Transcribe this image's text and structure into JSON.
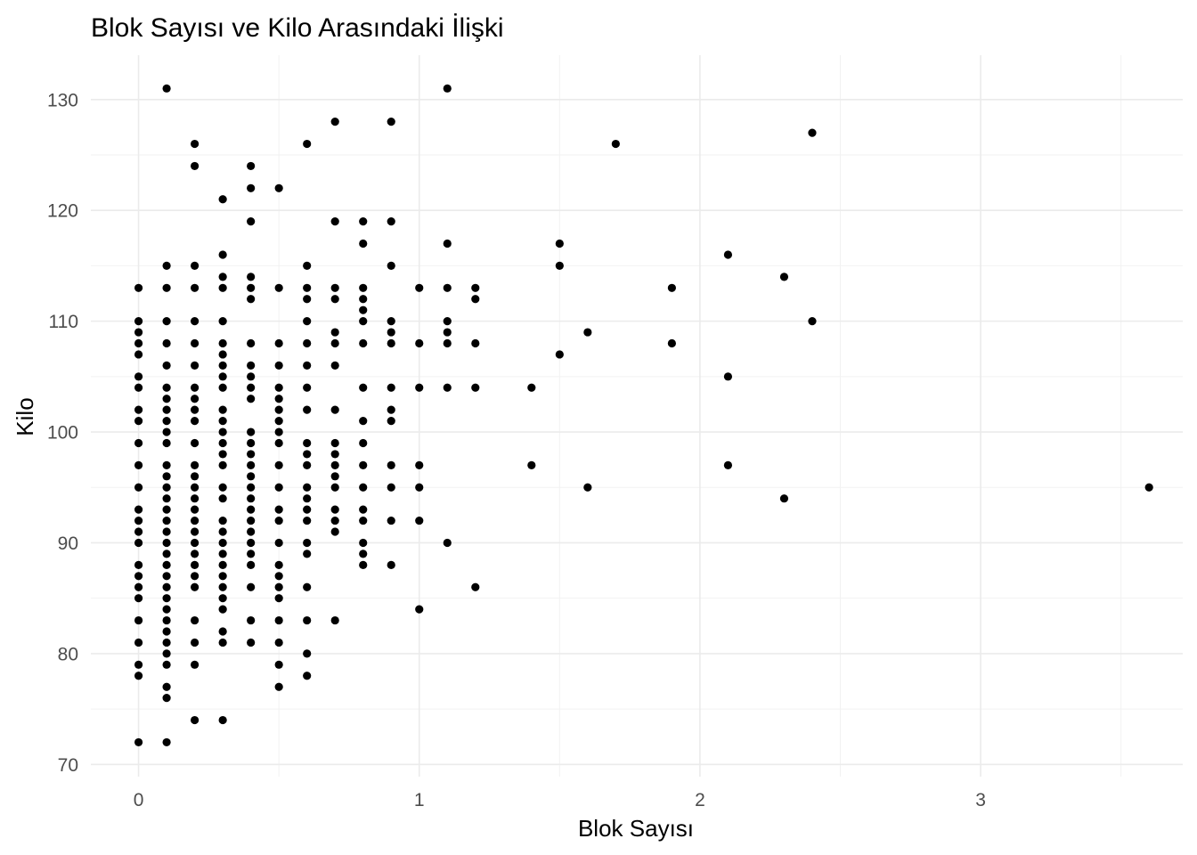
{
  "chart_data": {
    "type": "scatter",
    "title": "Blok Sayısı ve Kilo Arasındaki İlişki",
    "xlabel": "Blok Sayısı",
    "ylabel": "Kilo",
    "xlim": [
      -0.17,
      3.72
    ],
    "ylim": [
      68.9,
      134.0
    ],
    "x_ticks": [
      0,
      1,
      2,
      3
    ],
    "y_ticks": [
      70,
      80,
      90,
      100,
      110,
      120,
      130
    ],
    "grid": true,
    "point_color": "#000000",
    "points": [
      [
        0,
        72
      ],
      [
        0,
        78
      ],
      [
        0,
        79
      ],
      [
        0,
        81
      ],
      [
        0,
        83
      ],
      [
        0,
        85
      ],
      [
        0,
        86
      ],
      [
        0,
        87
      ],
      [
        0,
        88
      ],
      [
        0,
        90
      ],
      [
        0,
        91
      ],
      [
        0,
        92
      ],
      [
        0,
        93
      ],
      [
        0,
        95
      ],
      [
        0,
        97
      ],
      [
        0,
        99
      ],
      [
        0,
        101
      ],
      [
        0,
        102
      ],
      [
        0,
        104
      ],
      [
        0,
        105
      ],
      [
        0,
        107
      ],
      [
        0,
        108
      ],
      [
        0,
        109
      ],
      [
        0,
        110
      ],
      [
        0,
        113
      ],
      [
        0.1,
        72
      ],
      [
        0.1,
        76
      ],
      [
        0.1,
        77
      ],
      [
        0.1,
        79
      ],
      [
        0.1,
        80
      ],
      [
        0.1,
        81
      ],
      [
        0.1,
        82
      ],
      [
        0.1,
        83
      ],
      [
        0.1,
        84
      ],
      [
        0.1,
        85
      ],
      [
        0.1,
        86
      ],
      [
        0.1,
        87
      ],
      [
        0.1,
        88
      ],
      [
        0.1,
        89
      ],
      [
        0.1,
        90
      ],
      [
        0.1,
        91
      ],
      [
        0.1,
        92
      ],
      [
        0.1,
        93
      ],
      [
        0.1,
        94
      ],
      [
        0.1,
        95
      ],
      [
        0.1,
        96
      ],
      [
        0.1,
        97
      ],
      [
        0.1,
        99
      ],
      [
        0.1,
        100
      ],
      [
        0.1,
        101
      ],
      [
        0.1,
        102
      ],
      [
        0.1,
        103
      ],
      [
        0.1,
        104
      ],
      [
        0.1,
        106
      ],
      [
        0.1,
        108
      ],
      [
        0.1,
        110
      ],
      [
        0.1,
        113
      ],
      [
        0.1,
        115
      ],
      [
        0.1,
        131
      ],
      [
        0.2,
        74
      ],
      [
        0.2,
        79
      ],
      [
        0.2,
        81
      ],
      [
        0.2,
        83
      ],
      [
        0.2,
        86
      ],
      [
        0.2,
        87
      ],
      [
        0.2,
        88
      ],
      [
        0.2,
        89
      ],
      [
        0.2,
        90
      ],
      [
        0.2,
        91
      ],
      [
        0.2,
        92
      ],
      [
        0.2,
        93
      ],
      [
        0.2,
        94
      ],
      [
        0.2,
        95
      ],
      [
        0.2,
        96
      ],
      [
        0.2,
        97
      ],
      [
        0.2,
        99
      ],
      [
        0.2,
        101
      ],
      [
        0.2,
        102
      ],
      [
        0.2,
        103
      ],
      [
        0.2,
        104
      ],
      [
        0.2,
        106
      ],
      [
        0.2,
        108
      ],
      [
        0.2,
        110
      ],
      [
        0.2,
        113
      ],
      [
        0.2,
        115
      ],
      [
        0.2,
        124
      ],
      [
        0.2,
        126
      ],
      [
        0.3,
        74
      ],
      [
        0.3,
        81
      ],
      [
        0.3,
        82
      ],
      [
        0.3,
        84
      ],
      [
        0.3,
        85
      ],
      [
        0.3,
        86
      ],
      [
        0.3,
        87
      ],
      [
        0.3,
        88
      ],
      [
        0.3,
        89
      ],
      [
        0.3,
        90
      ],
      [
        0.3,
        91
      ],
      [
        0.3,
        92
      ],
      [
        0.3,
        94
      ],
      [
        0.3,
        95
      ],
      [
        0.3,
        97
      ],
      [
        0.3,
        98
      ],
      [
        0.3,
        99
      ],
      [
        0.3,
        100
      ],
      [
        0.3,
        101
      ],
      [
        0.3,
        102
      ],
      [
        0.3,
        104
      ],
      [
        0.3,
        105
      ],
      [
        0.3,
        106
      ],
      [
        0.3,
        107
      ],
      [
        0.3,
        108
      ],
      [
        0.3,
        110
      ],
      [
        0.3,
        113
      ],
      [
        0.3,
        114
      ],
      [
        0.3,
        116
      ],
      [
        0.3,
        121
      ],
      [
        0.4,
        81
      ],
      [
        0.4,
        83
      ],
      [
        0.4,
        86
      ],
      [
        0.4,
        88
      ],
      [
        0.4,
        89
      ],
      [
        0.4,
        90
      ],
      [
        0.4,
        91
      ],
      [
        0.4,
        92
      ],
      [
        0.4,
        93
      ],
      [
        0.4,
        94
      ],
      [
        0.4,
        95
      ],
      [
        0.4,
        96
      ],
      [
        0.4,
        97
      ],
      [
        0.4,
        98
      ],
      [
        0.4,
        99
      ],
      [
        0.4,
        100
      ],
      [
        0.4,
        103
      ],
      [
        0.4,
        104
      ],
      [
        0.4,
        105
      ],
      [
        0.4,
        106
      ],
      [
        0.4,
        108
      ],
      [
        0.4,
        112
      ],
      [
        0.4,
        113
      ],
      [
        0.4,
        114
      ],
      [
        0.4,
        119
      ],
      [
        0.4,
        122
      ],
      [
        0.4,
        124
      ],
      [
        0.5,
        77
      ],
      [
        0.5,
        79
      ],
      [
        0.5,
        81
      ],
      [
        0.5,
        83
      ],
      [
        0.5,
        85
      ],
      [
        0.5,
        86
      ],
      [
        0.5,
        87
      ],
      [
        0.5,
        88
      ],
      [
        0.5,
        90
      ],
      [
        0.5,
        92
      ],
      [
        0.5,
        93
      ],
      [
        0.5,
        95
      ],
      [
        0.5,
        97
      ],
      [
        0.5,
        99
      ],
      [
        0.5,
        100
      ],
      [
        0.5,
        101
      ],
      [
        0.5,
        102
      ],
      [
        0.5,
        103
      ],
      [
        0.5,
        104
      ],
      [
        0.5,
        106
      ],
      [
        0.5,
        108
      ],
      [
        0.5,
        113
      ],
      [
        0.5,
        122
      ],
      [
        0.6,
        78
      ],
      [
        0.6,
        80
      ],
      [
        0.6,
        83
      ],
      [
        0.6,
        86
      ],
      [
        0.6,
        89
      ],
      [
        0.6,
        90
      ],
      [
        0.6,
        92
      ],
      [
        0.6,
        93
      ],
      [
        0.6,
        94
      ],
      [
        0.6,
        95
      ],
      [
        0.6,
        97
      ],
      [
        0.6,
        98
      ],
      [
        0.6,
        99
      ],
      [
        0.6,
        102
      ],
      [
        0.6,
        104
      ],
      [
        0.6,
        106
      ],
      [
        0.6,
        108
      ],
      [
        0.6,
        110
      ],
      [
        0.6,
        112
      ],
      [
        0.6,
        113
      ],
      [
        0.6,
        115
      ],
      [
        0.6,
        126
      ],
      [
        0.7,
        83
      ],
      [
        0.7,
        91
      ],
      [
        0.7,
        92
      ],
      [
        0.7,
        93
      ],
      [
        0.7,
        95
      ],
      [
        0.7,
        96
      ],
      [
        0.7,
        97
      ],
      [
        0.7,
        98
      ],
      [
        0.7,
        99
      ],
      [
        0.7,
        102
      ],
      [
        0.7,
        106
      ],
      [
        0.7,
        108
      ],
      [
        0.7,
        109
      ],
      [
        0.7,
        112
      ],
      [
        0.7,
        113
      ],
      [
        0.7,
        119
      ],
      [
        0.7,
        128
      ],
      [
        0.8,
        88
      ],
      [
        0.8,
        89
      ],
      [
        0.8,
        90
      ],
      [
        0.8,
        92
      ],
      [
        0.8,
        93
      ],
      [
        0.8,
        95
      ],
      [
        0.8,
        97
      ],
      [
        0.8,
        99
      ],
      [
        0.8,
        101
      ],
      [
        0.8,
        104
      ],
      [
        0.8,
        108
      ],
      [
        0.8,
        110
      ],
      [
        0.8,
        111
      ],
      [
        0.8,
        112
      ],
      [
        0.8,
        113
      ],
      [
        0.8,
        117
      ],
      [
        0.8,
        119
      ],
      [
        0.9,
        88
      ],
      [
        0.9,
        92
      ],
      [
        0.9,
        95
      ],
      [
        0.9,
        97
      ],
      [
        0.9,
        101
      ],
      [
        0.9,
        102
      ],
      [
        0.9,
        104
      ],
      [
        0.9,
        108
      ],
      [
        0.9,
        109
      ],
      [
        0.9,
        110
      ],
      [
        0.9,
        115
      ],
      [
        0.9,
        119
      ],
      [
        0.9,
        128
      ],
      [
        1.0,
        84
      ],
      [
        1.0,
        92
      ],
      [
        1.0,
        95
      ],
      [
        1.0,
        97
      ],
      [
        1.0,
        104
      ],
      [
        1.0,
        108
      ],
      [
        1.0,
        113
      ],
      [
        1.1,
        90
      ],
      [
        1.1,
        104
      ],
      [
        1.1,
        108
      ],
      [
        1.1,
        109
      ],
      [
        1.1,
        110
      ],
      [
        1.1,
        113
      ],
      [
        1.1,
        117
      ],
      [
        1.1,
        131
      ],
      [
        1.2,
        86
      ],
      [
        1.2,
        104
      ],
      [
        1.2,
        108
      ],
      [
        1.2,
        112
      ],
      [
        1.2,
        113
      ],
      [
        1.4,
        97
      ],
      [
        1.4,
        104
      ],
      [
        1.5,
        107
      ],
      [
        1.5,
        115
      ],
      [
        1.5,
        117
      ],
      [
        1.6,
        95
      ],
      [
        1.6,
        109
      ],
      [
        1.7,
        126
      ],
      [
        1.9,
        108
      ],
      [
        1.9,
        113
      ],
      [
        2.1,
        97
      ],
      [
        2.1,
        105
      ],
      [
        2.1,
        116
      ],
      [
        2.3,
        94
      ],
      [
        2.3,
        114
      ],
      [
        2.4,
        110
      ],
      [
        2.4,
        127
      ],
      [
        3.6,
        95
      ]
    ]
  }
}
